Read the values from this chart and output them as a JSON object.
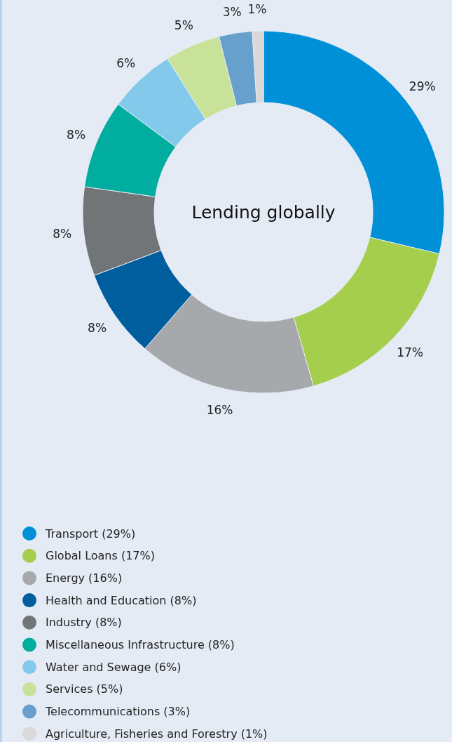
{
  "chart_data": {
    "type": "donut",
    "title": "Lending globally",
    "categories": [
      "Transport (29%)",
      "Global Loans (17%)",
      "Energy (16%)",
      "Health and Education (8%)",
      "Industry (8%)",
      "Miscellaneous Infrastructure (8%)",
      "Water and Sewage (6%)",
      "Services (5%)",
      "Telecommunications (3%)",
      "Agriculture, Fisheries and Forestry (1%)"
    ],
    "values": [
      29,
      17,
      16,
      8,
      8,
      8,
      6,
      5,
      3,
      1
    ],
    "value_labels": [
      "29%",
      "17%",
      "16%",
      "8%",
      "8%",
      "8%",
      "6%",
      "5%",
      "3%",
      "1%"
    ],
    "colors": [
      "#0090d8",
      "#a5ce4d",
      "#a6a8ab",
      "#005e9e",
      "#727578",
      "#00ad9f",
      "#83c9ec",
      "#c9e29a",
      "#67a0cc",
      "#d9d9d9"
    ],
    "legend": "bottom"
  }
}
